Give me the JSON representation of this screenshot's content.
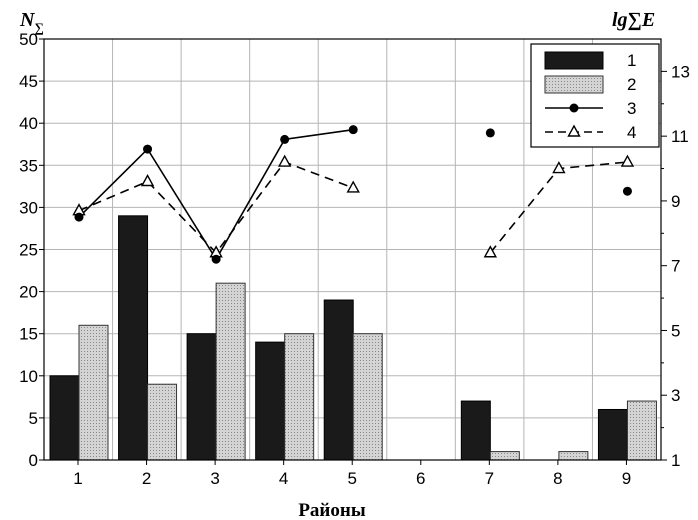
{
  "chart_data": {
    "type": "bar",
    "xlabel": "Районы",
    "ylabel_left": "N∑",
    "ylabel_right": "lg∑E",
    "categories": [
      "1",
      "2",
      "3",
      "4",
      "5",
      "6",
      "7",
      "8",
      "9"
    ],
    "ylim_left": [
      0,
      50
    ],
    "ylim_right": [
      1,
      14
    ],
    "y_ticks_left": [
      "0",
      "5",
      "10",
      "15",
      "20",
      "25",
      "30",
      "35",
      "40",
      "45",
      "50"
    ],
    "y_ticks_right": [
      "1",
      "3",
      "5",
      "7",
      "9",
      "11",
      "13"
    ],
    "grid": true,
    "legend_position": "top-right",
    "series": [
      {
        "name": "1",
        "type": "bar",
        "axis": "left",
        "values": [
          10,
          29,
          15,
          14,
          19,
          0,
          7,
          0,
          6
        ]
      },
      {
        "name": "2",
        "type": "bar",
        "axis": "left",
        "values": [
          16,
          9,
          21,
          15,
          15,
          0,
          1,
          1,
          7
        ]
      },
      {
        "name": "3",
        "type": "line",
        "axis": "right",
        "values": [
          8.5,
          10.6,
          7.2,
          10.9,
          11.2,
          null,
          11.1,
          null,
          9.3
        ]
      },
      {
        "name": "4",
        "type": "line-dashed",
        "axis": "right",
        "values": [
          8.7,
          9.6,
          7.4,
          10.2,
          9.4,
          null,
          7.4,
          10.0,
          10.2
        ]
      }
    ],
    "series3_segments": [
      [
        0,
        4
      ]
    ],
    "series4_segments": [
      [
        0,
        4
      ],
      [
        6,
        8
      ]
    ]
  },
  "colors": {
    "bar1": "#1a1a1a",
    "bar2": "#c4c4c4",
    "line": "#000000"
  }
}
